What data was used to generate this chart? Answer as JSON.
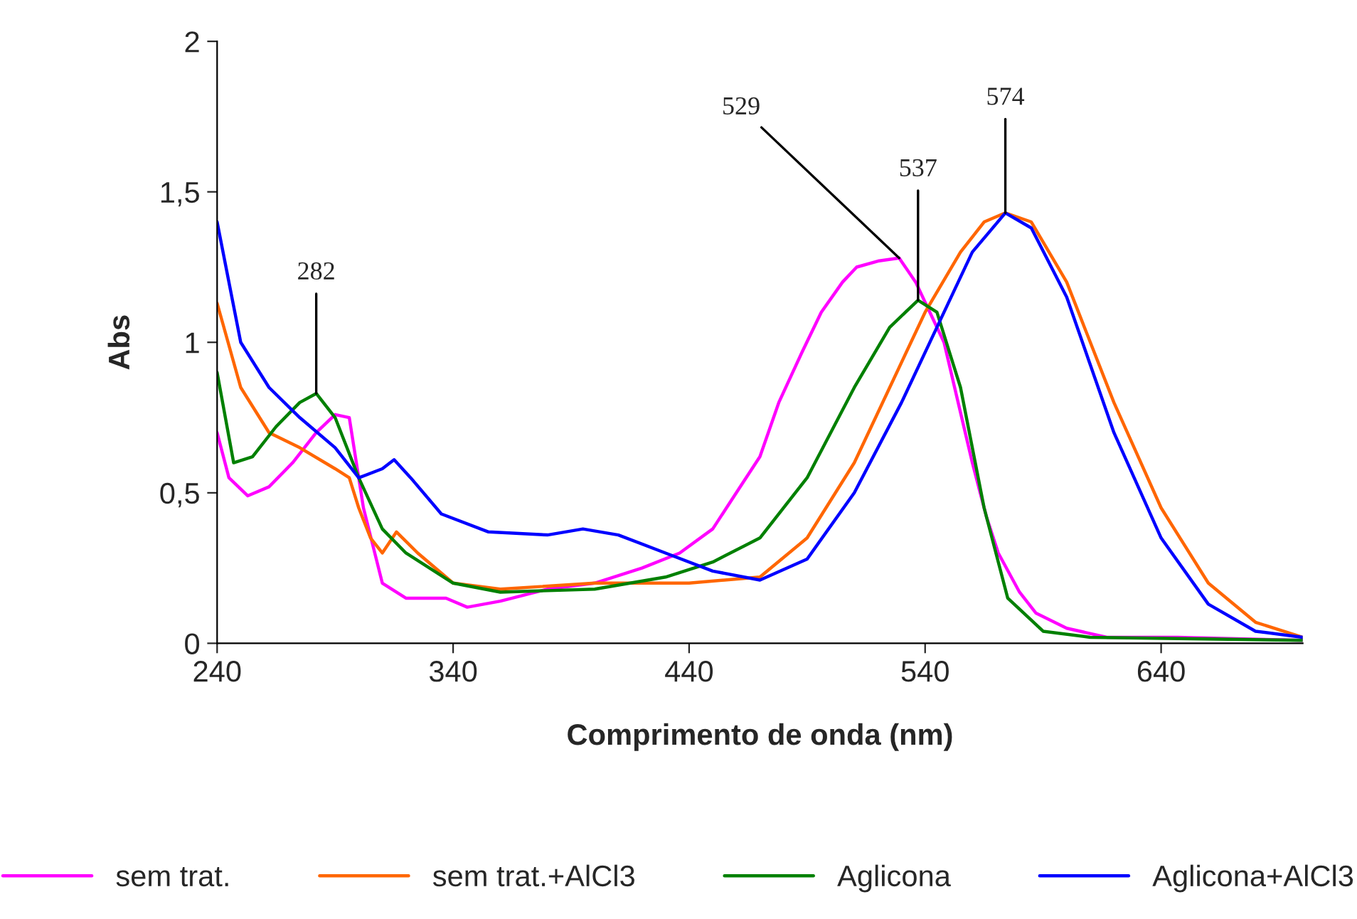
{
  "chart_data": {
    "type": "line",
    "xlabel": "Comprimento de onda (nm)",
    "ylabel": "Abs",
    "xlim": [
      240,
      700
    ],
    "xticks": [
      240,
      340,
      440,
      540,
      640
    ],
    "ylim": [
      0,
      2
    ],
    "yticks": [
      0,
      {
        "value": 0.5,
        "label": "0,5"
      },
      1,
      {
        "value": 1.5,
        "label": "1,5"
      },
      2
    ],
    "grid": false,
    "legend": "bottom",
    "line_style": "solid",
    "marker": "none",
    "series": [
      {
        "name": "sem trat.",
        "color": "#ff00ff",
        "x": [
          240,
          245,
          253,
          262,
          272,
          282,
          290,
          296,
          302,
          310,
          320,
          337,
          346,
          360,
          380,
          400,
          420,
          436,
          450,
          460,
          470,
          478,
          488,
          496,
          505,
          511,
          520,
          529,
          536,
          542,
          548,
          554,
          560,
          566,
          571,
          580,
          587,
          600,
          617,
          647,
          700
        ],
        "values": [
          0.7,
          0.55,
          0.49,
          0.52,
          0.6,
          0.7,
          0.76,
          0.75,
          0.45,
          0.2,
          0.15,
          0.15,
          0.12,
          0.14,
          0.18,
          0.2,
          0.25,
          0.3,
          0.38,
          0.5,
          0.62,
          0.8,
          0.97,
          1.1,
          1.2,
          1.25,
          1.27,
          1.28,
          1.2,
          1.1,
          1.0,
          0.8,
          0.6,
          0.42,
          0.3,
          0.17,
          0.1,
          0.05,
          0.02,
          0.02,
          0.01
        ]
      },
      {
        "name": "sem trat.+AlCl3",
        "color": "#ff6600",
        "x": [
          240,
          250,
          262,
          275,
          290,
          296,
          300,
          305,
          310,
          316,
          325,
          340,
          360,
          400,
          440,
          470,
          490,
          510,
          525,
          540,
          555,
          565,
          574,
          585,
          600,
          620,
          640,
          660,
          680,
          700
        ],
        "values": [
          1.13,
          0.85,
          0.7,
          0.65,
          0.58,
          0.55,
          0.45,
          0.35,
          0.3,
          0.37,
          0.3,
          0.2,
          0.18,
          0.2,
          0.2,
          0.22,
          0.35,
          0.6,
          0.85,
          1.1,
          1.3,
          1.4,
          1.43,
          1.4,
          1.2,
          0.8,
          0.45,
          0.2,
          0.07,
          0.02
        ]
      },
      {
        "name": "Aglicona",
        "color": "#008000",
        "x": [
          240,
          247,
          255,
          265,
          275,
          282,
          290,
          300,
          310,
          320,
          340,
          360,
          400,
          430,
          450,
          470,
          490,
          510,
          525,
          537,
          545,
          555,
          565,
          575,
          590,
          610,
          700
        ],
        "values": [
          0.9,
          0.6,
          0.62,
          0.72,
          0.8,
          0.83,
          0.75,
          0.55,
          0.38,
          0.3,
          0.2,
          0.17,
          0.18,
          0.22,
          0.27,
          0.35,
          0.55,
          0.85,
          1.05,
          1.14,
          1.1,
          0.85,
          0.45,
          0.15,
          0.04,
          0.02,
          0.01
        ]
      },
      {
        "name": "Aglicona+AlCl3",
        "color": "#0000ff",
        "x": [
          240,
          250,
          262,
          275,
          290,
          300,
          310,
          315,
          322,
          335,
          355,
          380,
          395,
          410,
          430,
          450,
          470,
          490,
          510,
          530,
          545,
          560,
          574,
          585,
          600,
          620,
          640,
          660,
          680,
          700
        ],
        "values": [
          1.4,
          1.0,
          0.85,
          0.75,
          0.65,
          0.55,
          0.58,
          0.61,
          0.55,
          0.43,
          0.37,
          0.36,
          0.38,
          0.36,
          0.3,
          0.24,
          0.21,
          0.28,
          0.5,
          0.8,
          1.05,
          1.3,
          1.43,
          1.38,
          1.15,
          0.7,
          0.35,
          0.13,
          0.04,
          0.02
        ]
      }
    ],
    "annotations": [
      {
        "text": "282",
        "x": 282,
        "y": 0.83
      },
      {
        "text": "529",
        "x": 529,
        "y": 1.28
      },
      {
        "text": "537",
        "x": 537,
        "y": 1.14
      },
      {
        "text": "574",
        "x": 574,
        "y": 1.43
      }
    ]
  }
}
